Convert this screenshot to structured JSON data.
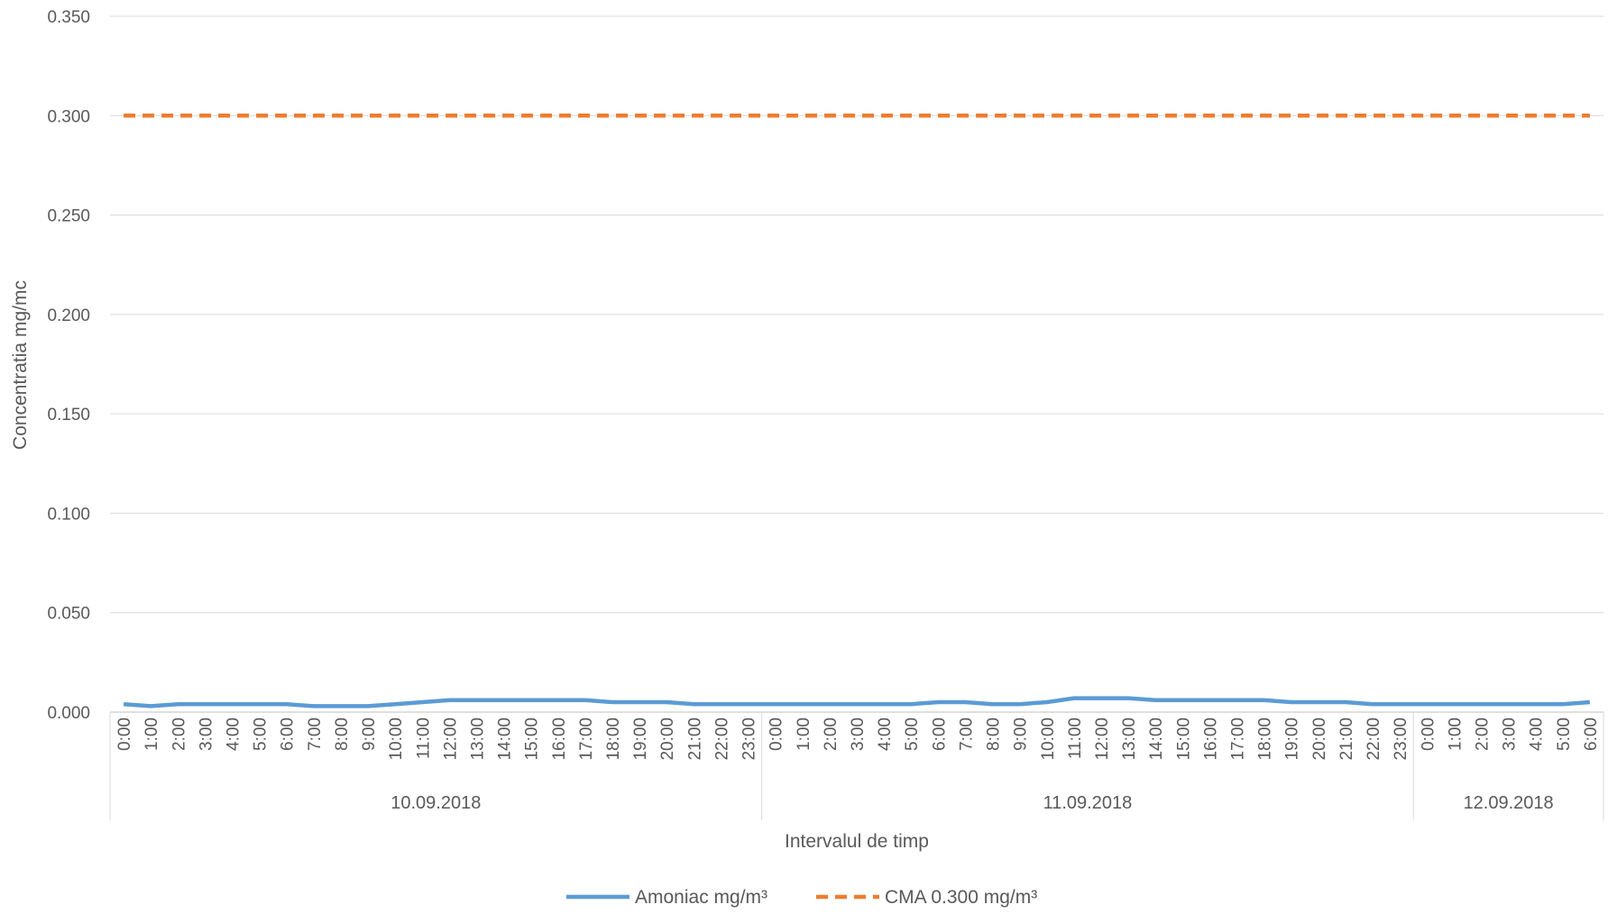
{
  "chart_data": {
    "type": "line",
    "xlabel": "Intervalul de timp",
    "ylabel": "Concentratia mg/mc",
    "ylim": [
      0,
      0.35
    ],
    "yticks": [
      "0.000",
      "0.050",
      "0.100",
      "0.150",
      "0.200",
      "0.250",
      "0.300",
      "0.350"
    ],
    "grid": true,
    "legend_position": "bottom",
    "date_groups": [
      {
        "label": "10.09.2018",
        "hours": [
          "0:00",
          "1:00",
          "2:00",
          "3:00",
          "4:00",
          "5:00",
          "6:00",
          "7:00",
          "8:00",
          "9:00",
          "10:00",
          "11:00",
          "12:00",
          "13:00",
          "14:00",
          "15:00",
          "16:00",
          "17:00",
          "18:00",
          "19:00",
          "20:00",
          "21:00",
          "22:00",
          "23:00"
        ]
      },
      {
        "label": "11.09.2018",
        "hours": [
          "0:00",
          "1:00",
          "2:00",
          "3:00",
          "4:00",
          "5:00",
          "6:00",
          "7:00",
          "8:00",
          "9:00",
          "10:00",
          "11:00",
          "12:00",
          "13:00",
          "14:00",
          "15:00",
          "16:00",
          "17:00",
          "18:00",
          "19:00",
          "20:00",
          "21:00",
          "22:00",
          "23:00"
        ]
      },
      {
        "label": "12.09.2018",
        "hours": [
          "0:00",
          "1:00",
          "2:00",
          "3:00",
          "4:00",
          "5:00",
          "6:00"
        ]
      }
    ],
    "series": [
      {
        "name": "Amoniac mg/m³",
        "color": "#5B9BD5",
        "style": "solid",
        "values": [
          0.004,
          0.003,
          0.003,
          0.004,
          0.004,
          0.004,
          0.004,
          0.004,
          0.004,
          0.004,
          0.004,
          0.004,
          0.004,
          0.003,
          0.004,
          0.003,
          0.003,
          0.003,
          0.003,
          0.003,
          0.004,
          0.004,
          0.004,
          0.005,
          0.005,
          0.006,
          0.006,
          0.006,
          0.006,
          0.006,
          0.006,
          0.006,
          0.006,
          0.006,
          0.006,
          0.006,
          0.006,
          0.006,
          0.005,
          0.005,
          0.005,
          0.005,
          0.005,
          0.005,
          0.004,
          0.004,
          0.004,
          0.004,
          0.004,
          0.004,
          0.004,
          0.004,
          0.004,
          0.004,
          0.004,
          0.004,
          0.004,
          0.004,
          0.004,
          0.004,
          0.004,
          0.004,
          0.004,
          0.004,
          0.004,
          0.004,
          0.004,
          0.004,
          0.004,
          0.004,
          0.004,
          0.004,
          0.004,
          0.004,
          0.004,
          0.004,
          0.004,
          0.004,
          0.004,
          0.004,
          0.004,
          0.004,
          0.004,
          0.004,
          0.004,
          0.004,
          0.004,
          0.004,
          0.004,
          0.004,
          0.004,
          0.004,
          0.004,
          0.004,
          0.004,
          0.004,
          0.004,
          0.004,
          0.004,
          0.004,
          0.004,
          0.004,
          0.004,
          0.004,
          0.004,
          0.004,
          0.004,
          0.004,
          0.004,
          0.004,
          0.004,
          0.004,
          0.004,
          0.004,
          0.004,
          0.004,
          0.004,
          0.004,
          0.004,
          0.004,
          0.004,
          0.004,
          0.004,
          0.004,
          0.004,
          0.004,
          0.004,
          0.004,
          0.004,
          0.004,
          0.004,
          0.004,
          0.004,
          0.004,
          0.004,
          0.004,
          0.004,
          0.004,
          0.004,
          0.004,
          0.004,
          0.004,
          0.004,
          0.004,
          0.004,
          0.004,
          0.004,
          0.004,
          0.004,
          0.004,
          0.004,
          0.004,
          0.004,
          0.004,
          0.004,
          0.004,
          0.004,
          0.004,
          0.004,
          0.004,
          0.004,
          0.004,
          0.004,
          0.004,
          0.004,
          0.004,
          0.004,
          0.004,
          0.004,
          0.004,
          0.004,
          0.004,
          0.004,
          0.004,
          0.004,
          0.004,
          0.004,
          0.004,
          0.004,
          0.004,
          0.004,
          0.004,
          0.004,
          0.004,
          0.004,
          0.004,
          0.004,
          0.004,
          0.004,
          0.004,
          0.004,
          0.004
        ],
        "hourly_values": [
          0.004,
          0.003,
          0.004,
          0.004,
          0.004,
          0.004,
          0.004,
          0.003,
          0.003,
          0.003,
          0.004,
          0.005,
          0.006,
          0.006,
          0.006,
          0.006,
          0.006,
          0.006,
          0.005,
          0.005,
          0.005,
          0.004,
          0.004,
          0.004,
          0.004,
          0.004,
          0.004,
          0.004,
          0.004,
          0.004,
          0.005,
          0.005,
          0.004,
          0.004,
          0.005,
          0.007,
          0.007,
          0.007,
          0.006,
          0.006,
          0.006,
          0.006,
          0.006,
          0.005,
          0.005,
          0.005,
          0.004,
          0.004,
          0.004,
          0.004,
          0.004,
          0.004,
          0.004,
          0.004,
          0.005
        ]
      },
      {
        "name": "CMA 0.300 mg/m³",
        "color": "#ED7D31",
        "style": "dashed",
        "constant": 0.3
      }
    ]
  }
}
